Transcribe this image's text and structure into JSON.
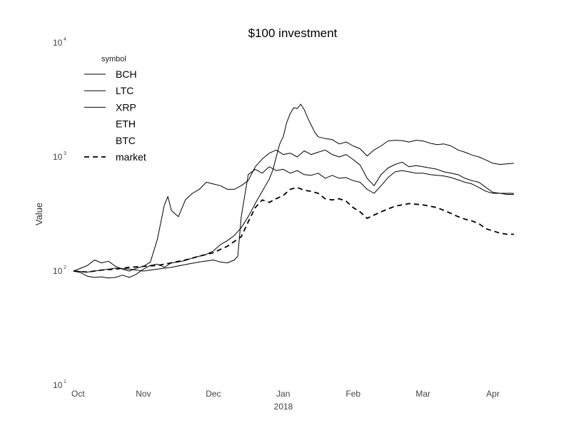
{
  "chart_data": {
    "type": "line",
    "title": "$100 investment",
    "xlabel": "",
    "ylabel": "Value",
    "x_ticks": [
      "Oct",
      "Nov",
      "Dec",
      "Jan",
      "Feb",
      "Mar",
      "Apr"
    ],
    "x_year_label": "2018",
    "y_scale": "log",
    "ylim": [
      10,
      10000
    ],
    "y_ticks": [
      {
        "value": 10,
        "base": "10",
        "exp": "1"
      },
      {
        "value": 100,
        "base": "10",
        "exp": "2"
      },
      {
        "value": 1000,
        "base": "10",
        "exp": "3"
      },
      {
        "value": 10000,
        "base": "10",
        "exp": "4"
      }
    ],
    "legend": {
      "title": "symbol",
      "position": "top-left",
      "entries": [
        {
          "label": "BCH",
          "style": "solid"
        },
        {
          "label": "LTC",
          "style": "solid"
        },
        {
          "label": "XRP",
          "style": "solid"
        },
        {
          "label": "ETH",
          "style": "none"
        },
        {
          "label": "BTC",
          "style": "none"
        },
        {
          "label": "market",
          "style": "dashed"
        }
      ]
    },
    "x_domain": [
      0,
      6.3
    ],
    "series": [
      {
        "name": "LTC",
        "style": "solid",
        "points": [
          [
            0,
            100
          ],
          [
            0.1,
            97
          ],
          [
            0.2,
            90
          ],
          [
            0.3,
            88
          ],
          [
            0.4,
            89
          ],
          [
            0.5,
            87
          ],
          [
            0.6,
            88
          ],
          [
            0.7,
            92
          ],
          [
            0.8,
            88
          ],
          [
            0.9,
            94
          ],
          [
            1.0,
            104
          ],
          [
            1.1,
            112
          ],
          [
            1.2,
            115
          ],
          [
            1.3,
            108
          ],
          [
            1.4,
            118
          ],
          [
            1.5,
            120
          ],
          [
            1.6,
            124
          ],
          [
            1.7,
            130
          ],
          [
            1.8,
            135
          ],
          [
            1.9,
            140
          ],
          [
            2.0,
            150
          ],
          [
            2.1,
            170
          ],
          [
            2.2,
            185
          ],
          [
            2.3,
            205
          ],
          [
            2.4,
            240
          ],
          [
            2.5,
            300
          ],
          [
            2.6,
            390
          ],
          [
            2.7,
            500
          ],
          [
            2.8,
            640
          ],
          [
            2.85,
            760
          ],
          [
            2.9,
            1000
          ],
          [
            2.95,
            1300
          ],
          [
            3.0,
            1500
          ],
          [
            3.05,
            2000
          ],
          [
            3.1,
            2400
          ],
          [
            3.15,
            2700
          ],
          [
            3.2,
            2650
          ],
          [
            3.25,
            2900
          ],
          [
            3.3,
            2600
          ],
          [
            3.35,
            2200
          ],
          [
            3.4,
            1900
          ],
          [
            3.45,
            1650
          ],
          [
            3.5,
            1500
          ],
          [
            3.6,
            1450
          ],
          [
            3.7,
            1420
          ],
          [
            3.8,
            1300
          ],
          [
            3.9,
            1350
          ],
          [
            4.0,
            1250
          ],
          [
            4.1,
            1180
          ],
          [
            4.2,
            1020
          ],
          [
            4.3,
            1150
          ],
          [
            4.4,
            1250
          ],
          [
            4.5,
            1380
          ],
          [
            4.6,
            1400
          ],
          [
            4.7,
            1390
          ],
          [
            4.8,
            1350
          ],
          [
            4.9,
            1400
          ],
          [
            5.0,
            1380
          ],
          [
            5.1,
            1320
          ],
          [
            5.2,
            1280
          ],
          [
            5.3,
            1300
          ],
          [
            5.4,
            1250
          ],
          [
            5.5,
            1150
          ],
          [
            5.6,
            1100
          ],
          [
            5.7,
            1040
          ],
          [
            5.8,
            1000
          ],
          [
            5.9,
            940
          ],
          [
            6.0,
            880
          ],
          [
            6.1,
            860
          ],
          [
            6.2,
            870
          ],
          [
            6.3,
            880
          ]
        ]
      },
      {
        "name": "BCH",
        "style": "solid",
        "points": [
          [
            0,
            100
          ],
          [
            0.2,
            112
          ],
          [
            0.3,
            125
          ],
          [
            0.4,
            118
          ],
          [
            0.5,
            122
          ],
          [
            0.6,
            110
          ],
          [
            0.7,
            104
          ],
          [
            0.8,
            100
          ],
          [
            0.9,
            106
          ],
          [
            1.0,
            110
          ],
          [
            1.1,
            120
          ],
          [
            1.2,
            190
          ],
          [
            1.3,
            380
          ],
          [
            1.35,
            450
          ],
          [
            1.4,
            340
          ],
          [
            1.5,
            300
          ],
          [
            1.6,
            420
          ],
          [
            1.7,
            480
          ],
          [
            1.8,
            520
          ],
          [
            1.9,
            600
          ],
          [
            2.0,
            580
          ],
          [
            2.1,
            560
          ],
          [
            2.2,
            520
          ],
          [
            2.3,
            520
          ],
          [
            2.4,
            560
          ],
          [
            2.5,
            620
          ],
          [
            2.6,
            820
          ],
          [
            2.7,
            960
          ],
          [
            2.8,
            1080
          ],
          [
            2.9,
            1150
          ],
          [
            3.0,
            1050
          ],
          [
            3.1,
            1080
          ],
          [
            3.2,
            1000
          ],
          [
            3.3,
            1130
          ],
          [
            3.4,
            1050
          ],
          [
            3.5,
            1100
          ],
          [
            3.6,
            1150
          ],
          [
            3.7,
            1050
          ],
          [
            3.8,
            1000
          ],
          [
            3.9,
            1050
          ],
          [
            4.0,
            950
          ],
          [
            4.1,
            850
          ],
          [
            4.2,
            650
          ],
          [
            4.3,
            560
          ],
          [
            4.4,
            700
          ],
          [
            4.5,
            800
          ],
          [
            4.6,
            860
          ],
          [
            4.7,
            900
          ],
          [
            4.8,
            820
          ],
          [
            4.9,
            840
          ],
          [
            5.0,
            820
          ],
          [
            5.1,
            800
          ],
          [
            5.2,
            780
          ],
          [
            5.3,
            740
          ],
          [
            5.4,
            720
          ],
          [
            5.5,
            700
          ],
          [
            5.6,
            650
          ],
          [
            5.7,
            620
          ],
          [
            5.8,
            600
          ],
          [
            5.9,
            540
          ],
          [
            6.0,
            490
          ],
          [
            6.1,
            480
          ],
          [
            6.2,
            470
          ],
          [
            6.3,
            470
          ]
        ]
      },
      {
        "name": "XRP",
        "style": "solid",
        "points": [
          [
            0,
            100
          ],
          [
            0.2,
            98
          ],
          [
            0.4,
            102
          ],
          [
            0.6,
            106
          ],
          [
            0.8,
            104
          ],
          [
            1.0,
            100
          ],
          [
            1.2,
            104
          ],
          [
            1.4,
            108
          ],
          [
            1.6,
            114
          ],
          [
            1.8,
            120
          ],
          [
            2.0,
            125
          ],
          [
            2.1,
            120
          ],
          [
            2.2,
            118
          ],
          [
            2.3,
            125
          ],
          [
            2.35,
            135
          ],
          [
            2.4,
            300
          ],
          [
            2.5,
            700
          ],
          [
            2.6,
            780
          ],
          [
            2.7,
            720
          ],
          [
            2.8,
            820
          ],
          [
            2.9,
            760
          ],
          [
            3.0,
            780
          ],
          [
            3.1,
            720
          ],
          [
            3.2,
            760
          ],
          [
            3.3,
            700
          ],
          [
            3.4,
            690
          ],
          [
            3.5,
            720
          ],
          [
            3.6,
            650
          ],
          [
            3.7,
            690
          ],
          [
            3.8,
            650
          ],
          [
            3.9,
            660
          ],
          [
            4.0,
            620
          ],
          [
            4.1,
            600
          ],
          [
            4.2,
            520
          ],
          [
            4.3,
            480
          ],
          [
            4.4,
            560
          ],
          [
            4.5,
            660
          ],
          [
            4.6,
            740
          ],
          [
            4.7,
            760
          ],
          [
            4.8,
            740
          ],
          [
            4.9,
            720
          ],
          [
            5.0,
            720
          ],
          [
            5.1,
            700
          ],
          [
            5.2,
            690
          ],
          [
            5.3,
            680
          ],
          [
            5.4,
            660
          ],
          [
            5.5,
            630
          ],
          [
            5.6,
            600
          ],
          [
            5.7,
            580
          ],
          [
            5.8,
            540
          ],
          [
            5.9,
            500
          ],
          [
            6.0,
            480
          ],
          [
            6.1,
            480
          ],
          [
            6.2,
            480
          ],
          [
            6.3,
            480
          ]
        ]
      },
      {
        "name": "market",
        "style": "dashed",
        "points": [
          [
            0,
            100
          ],
          [
            0.2,
            98
          ],
          [
            0.4,
            102
          ],
          [
            0.6,
            104
          ],
          [
            0.8,
            108
          ],
          [
            1.0,
            110
          ],
          [
            1.2,
            112
          ],
          [
            1.4,
            118
          ],
          [
            1.6,
            125
          ],
          [
            1.8,
            135
          ],
          [
            2.0,
            145
          ],
          [
            2.2,
            165
          ],
          [
            2.4,
            200
          ],
          [
            2.5,
            270
          ],
          [
            2.6,
            360
          ],
          [
            2.7,
            420
          ],
          [
            2.8,
            400
          ],
          [
            2.9,
            430
          ],
          [
            3.0,
            460
          ],
          [
            3.1,
            520
          ],
          [
            3.2,
            540
          ],
          [
            3.3,
            510
          ],
          [
            3.4,
            500
          ],
          [
            3.5,
            480
          ],
          [
            3.6,
            430
          ],
          [
            3.7,
            420
          ],
          [
            3.8,
            430
          ],
          [
            3.9,
            410
          ],
          [
            4.0,
            360
          ],
          [
            4.1,
            330
          ],
          [
            4.2,
            290
          ],
          [
            4.3,
            310
          ],
          [
            4.4,
            330
          ],
          [
            4.5,
            350
          ],
          [
            4.6,
            370
          ],
          [
            4.7,
            380
          ],
          [
            4.8,
            390
          ],
          [
            4.9,
            385
          ],
          [
            5.0,
            380
          ],
          [
            5.1,
            370
          ],
          [
            5.2,
            360
          ],
          [
            5.3,
            340
          ],
          [
            5.4,
            320
          ],
          [
            5.5,
            300
          ],
          [
            5.6,
            285
          ],
          [
            5.7,
            275
          ],
          [
            5.8,
            260
          ],
          [
            5.9,
            235
          ],
          [
            6.0,
            225
          ],
          [
            6.1,
            215
          ],
          [
            6.2,
            210
          ],
          [
            6.3,
            210
          ]
        ]
      }
    ]
  }
}
